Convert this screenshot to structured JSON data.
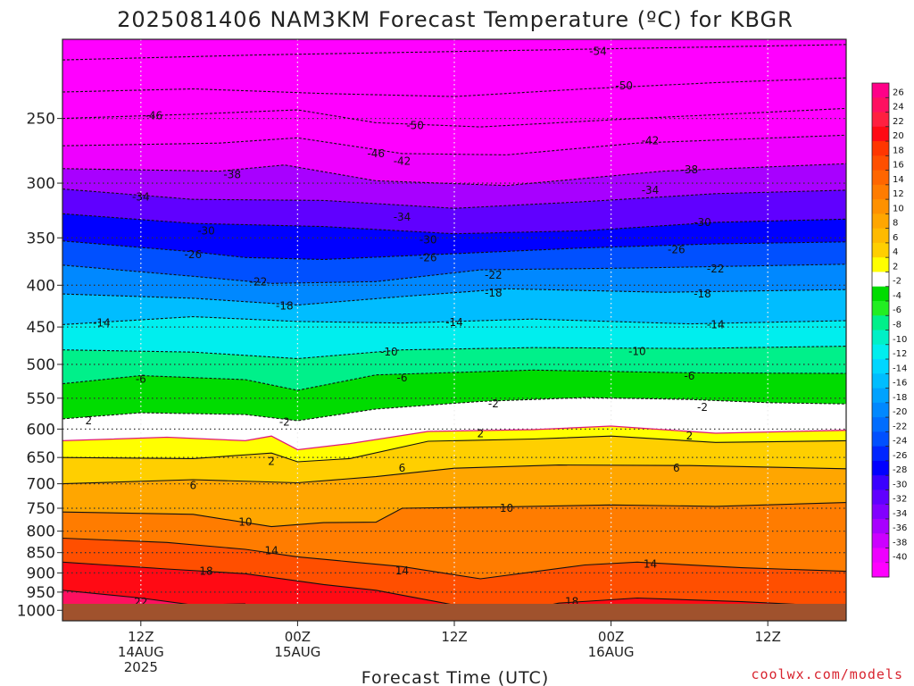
{
  "chart_data": {
    "type": "heatmap",
    "title": "2025081406 NAM3KM Forecast Temperature (ºC) for KBGR",
    "xlabel": "Forecast Time (UTC)",
    "ylabel": "",
    "x_ticks": [
      {
        "lines": [
          "12Z",
          "14AUG",
          "2025"
        ],
        "hour": 6
      },
      {
        "lines": [
          "00Z",
          "15AUG"
        ],
        "hour": 18
      },
      {
        "lines": [
          "12Z"
        ],
        "hour": 30
      },
      {
        "lines": [
          "00Z",
          "16AUG"
        ],
        "hour": 42
      },
      {
        "lines": [
          "12Z"
        ],
        "hour": 54
      }
    ],
    "x_range_hours": [
      0,
      60
    ],
    "y_axis": {
      "scale": "log-pressure",
      "units": "hPa",
      "range": [
        1030,
        200
      ],
      "ticks": [
        1000,
        950,
        900,
        850,
        800,
        750,
        700,
        650,
        600,
        550,
        500,
        450,
        400,
        350,
        300,
        250
      ]
    },
    "isotherms": [
      {
        "temp": -54,
        "kind": "neg",
        "points": [
          [
            0,
            212
          ],
          [
            15,
            209
          ],
          [
            30,
            207
          ],
          [
            45,
            205
          ],
          [
            60,
            203
          ]
        ]
      },
      {
        "temp": -50,
        "kind": "neg",
        "points": [
          [
            0,
            232
          ],
          [
            10,
            230
          ],
          [
            20,
            233
          ],
          [
            30,
            235
          ],
          [
            40,
            230
          ],
          [
            50,
            226
          ],
          [
            60,
            223
          ]
        ]
      },
      {
        "temp": -46,
        "kind": "neg",
        "points": [
          [
            0,
            250
          ],
          [
            10,
            247
          ],
          [
            18,
            244
          ],
          [
            24,
            253
          ],
          [
            32,
            256
          ],
          [
            44,
            250
          ],
          [
            60,
            243
          ]
        ]
      },
      {
        "temp": -42,
        "kind": "neg",
        "points": [
          [
            0,
            270
          ],
          [
            12,
            268
          ],
          [
            18,
            264
          ],
          [
            26,
            276
          ],
          [
            34,
            277
          ],
          [
            44,
            268
          ],
          [
            60,
            262
          ]
        ]
      },
      {
        "temp": -38,
        "kind": "neg",
        "points": [
          [
            0,
            288
          ],
          [
            12,
            290
          ],
          [
            17,
            285
          ],
          [
            24,
            298
          ],
          [
            34,
            302
          ],
          [
            46,
            290
          ],
          [
            60,
            284
          ]
        ]
      },
      {
        "temp": -34,
        "kind": "neg",
        "points": [
          [
            0,
            305
          ],
          [
            10,
            314
          ],
          [
            20,
            315
          ],
          [
            30,
            322
          ],
          [
            40,
            316
          ],
          [
            50,
            309
          ],
          [
            60,
            306
          ]
        ]
      },
      {
        "temp": -30,
        "kind": "neg",
        "points": [
          [
            0,
            327
          ],
          [
            10,
            336
          ],
          [
            20,
            339
          ],
          [
            30,
            346
          ],
          [
            40,
            343
          ],
          [
            50,
            335
          ],
          [
            60,
            332
          ]
        ]
      },
      {
        "temp": -26,
        "kind": "neg",
        "points": [
          [
            0,
            353
          ],
          [
            10,
            364
          ],
          [
            14,
            370
          ],
          [
            20,
            372
          ],
          [
            30,
            366
          ],
          [
            40,
            360
          ],
          [
            50,
            356
          ],
          [
            60,
            354
          ]
        ]
      },
      {
        "temp": -22,
        "kind": "neg",
        "points": [
          [
            0,
            378
          ],
          [
            10,
            390
          ],
          [
            16,
            398
          ],
          [
            24,
            396
          ],
          [
            32,
            383
          ],
          [
            44,
            381
          ],
          [
            60,
            377
          ]
        ]
      },
      {
        "temp": -18,
        "kind": "neg",
        "points": [
          [
            0,
            410
          ],
          [
            10,
            415
          ],
          [
            18,
            423
          ],
          [
            26,
            413
          ],
          [
            34,
            404
          ],
          [
            46,
            408
          ],
          [
            60,
            405
          ]
        ]
      },
      {
        "temp": -14,
        "kind": "neg",
        "points": [
          [
            0,
            447
          ],
          [
            10,
            437
          ],
          [
            18,
            443
          ],
          [
            26,
            445
          ],
          [
            36,
            440
          ],
          [
            48,
            446
          ],
          [
            60,
            442
          ]
        ]
      },
      {
        "temp": -10,
        "kind": "neg",
        "points": [
          [
            0,
            480
          ],
          [
            10,
            483
          ],
          [
            18,
            492
          ],
          [
            26,
            480
          ],
          [
            36,
            477
          ],
          [
            48,
            478
          ],
          [
            60,
            475
          ]
        ]
      },
      {
        "temp": -6,
        "kind": "neg",
        "points": [
          [
            0,
            528
          ],
          [
            6,
            516
          ],
          [
            14,
            522
          ],
          [
            18,
            538
          ],
          [
            24,
            515
          ],
          [
            36,
            508
          ],
          [
            48,
            512
          ],
          [
            60,
            513
          ]
        ]
      },
      {
        "temp": -2,
        "kind": "neg",
        "points": [
          [
            0,
            583
          ],
          [
            6,
            573
          ],
          [
            14,
            576
          ],
          [
            18,
            586
          ],
          [
            24,
            567
          ],
          [
            32,
            555
          ],
          [
            40,
            549
          ],
          [
            48,
            552
          ],
          [
            54,
            557
          ],
          [
            60,
            559
          ]
        ]
      },
      {
        "temp": 2,
        "kind": "zero",
        "points": [
          [
            0,
            620
          ],
          [
            8,
            614
          ],
          [
            14,
            620
          ],
          [
            16,
            612
          ],
          [
            18,
            636
          ],
          [
            22,
            625
          ],
          [
            28,
            604
          ],
          [
            36,
            601
          ],
          [
            42,
            595
          ],
          [
            50,
            607
          ],
          [
            60,
            602
          ]
        ]
      },
      {
        "temp": 2,
        "kind": "pos",
        "points": [
          [
            0,
            650
          ],
          [
            10,
            652
          ],
          [
            16,
            642
          ],
          [
            18,
            658
          ],
          [
            22,
            652
          ],
          [
            28,
            621
          ],
          [
            36,
            617
          ],
          [
            42,
            612
          ],
          [
            50,
            623
          ],
          [
            60,
            620
          ]
        ]
      },
      {
        "temp": 6,
        "kind": "pos",
        "points": [
          [
            0,
            700
          ],
          [
            10,
            692
          ],
          [
            18,
            698
          ],
          [
            24,
            686
          ],
          [
            30,
            670
          ],
          [
            38,
            664
          ],
          [
            48,
            665
          ],
          [
            60,
            671
          ]
        ]
      },
      {
        "temp": 10,
        "kind": "pos",
        "points": [
          [
            0,
            758
          ],
          [
            10,
            763
          ],
          [
            16,
            790
          ],
          [
            20,
            781
          ],
          [
            24,
            780
          ],
          [
            26,
            750
          ],
          [
            34,
            747
          ],
          [
            42,
            743
          ],
          [
            50,
            746
          ],
          [
            60,
            738
          ]
        ]
      },
      {
        "temp": 14,
        "kind": "pos",
        "points": [
          [
            0,
            816
          ],
          [
            8,
            826
          ],
          [
            14,
            842
          ],
          [
            18,
            860
          ],
          [
            22,
            872
          ],
          [
            26,
            884
          ],
          [
            32,
            915
          ],
          [
            40,
            880
          ],
          [
            44,
            873
          ],
          [
            52,
            887
          ],
          [
            60,
            896
          ]
        ]
      },
      {
        "temp": 18,
        "kind": "pos",
        "points": [
          [
            0,
            873
          ],
          [
            8,
            890
          ],
          [
            14,
            902
          ],
          [
            20,
            930
          ],
          [
            24,
            945
          ],
          [
            30,
            985
          ],
          [
            34,
            1010
          ],
          [
            38,
            980
          ],
          [
            44,
            966
          ],
          [
            52,
            976
          ],
          [
            60,
            990
          ]
        ]
      },
      {
        "temp": 22,
        "kind": "pos",
        "points": [
          [
            0,
            945
          ],
          [
            6,
            966
          ],
          [
            10,
            985
          ],
          [
            14,
            982
          ]
        ]
      }
    ],
    "isotherm_labels": [
      {
        "text": "-54",
        "hour": 41,
        "p": 207
      },
      {
        "text": "-50",
        "hour": 43,
        "p": 228
      },
      {
        "text": "-50",
        "hour": 27,
        "p": 255
      },
      {
        "text": "-46",
        "hour": 7,
        "p": 248
      },
      {
        "text": "-46",
        "hour": 24,
        "p": 276
      },
      {
        "text": "-42",
        "hour": 26,
        "p": 282
      },
      {
        "text": "-42",
        "hour": 45,
        "p": 266
      },
      {
        "text": "-38",
        "hour": 13,
        "p": 293
      },
      {
        "text": "-38",
        "hour": 48,
        "p": 289
      },
      {
        "text": "-34",
        "hour": 6,
        "p": 312
      },
      {
        "text": "-34",
        "hour": 26,
        "p": 330
      },
      {
        "text": "-34",
        "hour": 45,
        "p": 306
      },
      {
        "text": "-30",
        "hour": 11,
        "p": 343
      },
      {
        "text": "-30",
        "hour": 28,
        "p": 352
      },
      {
        "text": "-30",
        "hour": 49,
        "p": 335
      },
      {
        "text": "-26",
        "hour": 10,
        "p": 367
      },
      {
        "text": "-26",
        "hour": 28,
        "p": 370
      },
      {
        "text": "-26",
        "hour": 47,
        "p": 362
      },
      {
        "text": "-22",
        "hour": 15,
        "p": 396
      },
      {
        "text": "-22",
        "hour": 33,
        "p": 389
      },
      {
        "text": "-22",
        "hour": 50,
        "p": 382
      },
      {
        "text": "-18",
        "hour": 17,
        "p": 424
      },
      {
        "text": "-18",
        "hour": 33,
        "p": 409
      },
      {
        "text": "-18",
        "hour": 49,
        "p": 410
      },
      {
        "text": "-14",
        "hour": 3,
        "p": 445
      },
      {
        "text": "-14",
        "hour": 30,
        "p": 444
      },
      {
        "text": "-14",
        "hour": 50,
        "p": 447
      },
      {
        "text": "-10",
        "hour": 25,
        "p": 483
      },
      {
        "text": "-10",
        "hour": 44,
        "p": 482
      },
      {
        "text": "-6",
        "hour": 6,
        "p": 521
      },
      {
        "text": "-6",
        "hour": 26,
        "p": 519
      },
      {
        "text": "-6",
        "hour": 48,
        "p": 517
      },
      {
        "text": "-2",
        "hour": 17,
        "p": 588
      },
      {
        "text": "-2",
        "hour": 33,
        "p": 559
      },
      {
        "text": "-2",
        "hour": 49,
        "p": 564
      },
      {
        "text": "2",
        "hour": 2,
        "p": 586
      },
      {
        "text": "2",
        "hour": 32,
        "p": 608
      },
      {
        "text": "2",
        "hour": 48,
        "p": 612
      },
      {
        "text": "2",
        "hour": 16,
        "p": 657
      },
      {
        "text": "6",
        "hour": 10,
        "p": 703
      },
      {
        "text": "6",
        "hour": 26,
        "p": 670
      },
      {
        "text": "6",
        "hour": 47,
        "p": 670
      },
      {
        "text": "10",
        "hour": 14,
        "p": 780
      },
      {
        "text": "10",
        "hour": 34,
        "p": 750
      },
      {
        "text": "14",
        "hour": 16,
        "p": 845
      },
      {
        "text": "14",
        "hour": 26,
        "p": 895
      },
      {
        "text": "14",
        "hour": 45,
        "p": 878
      },
      {
        "text": "18",
        "hour": 11,
        "p": 896
      },
      {
        "text": "18",
        "hour": 39,
        "p": 976
      },
      {
        "text": "22",
        "hour": 6,
        "p": 977
      }
    ],
    "colorbar": {
      "ticks": [
        26,
        24,
        22,
        20,
        18,
        16,
        14,
        12,
        10,
        8,
        6,
        4,
        2,
        -2,
        -4,
        -6,
        -8,
        -10,
        -12,
        -14,
        -16,
        -18,
        -20,
        -22,
        -24,
        -26,
        -28,
        -30,
        -32,
        -34,
        -36,
        -38,
        -40
      ],
      "colors": [
        "#ff0088",
        "#ff1060",
        "#ff2040",
        "#ff0a14",
        "#ff3600",
        "#ff4f00",
        "#ff6600",
        "#ff7c00",
        "#ff9100",
        "#ffa600",
        "#ffba00",
        "#ffcf00",
        "#ffff00",
        "#ffffff",
        "#00dc00",
        "#22ee22",
        "#00f08a",
        "#00f0c6",
        "#00eeee",
        "#00d6ff",
        "#00bdff",
        "#00a2ff",
        "#0088ff",
        "#006dff",
        "#0050ff",
        "#0026ff",
        "#0000ff",
        "#3a00ff",
        "#6000ff",
        "#8200ff",
        "#a800ff",
        "#cc00ff",
        "#ee00ff",
        "#ff00ff"
      ]
    },
    "grid": true,
    "ground_color": "#a0522d"
  },
  "credit": "coolwx.com/models"
}
